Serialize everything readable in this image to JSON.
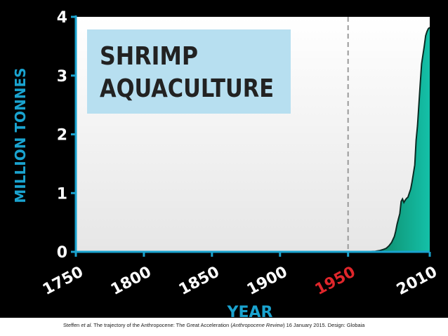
{
  "colors": {
    "accent": "#1aa3cf",
    "highlight": "#e0262b",
    "area_fill": "#12b8a3",
    "title_box": "#b7dff0",
    "background": "#000000",
    "plot_background": "#ececec",
    "caption_band": "#ffffff"
  },
  "caption": {
    "author": "Steffen",
    "author_suffix": "et al.",
    "text_1": " The trajectory of the Anthropocene: The Great Acceleration (",
    "journal": "Anthropocene Review",
    "text_2": ") 16 January 2015. Design: Globaia"
  },
  "chart_data": {
    "type": "area",
    "title_line1": "SHRIMP",
    "title_line2": "AQUACULTURE",
    "xlabel": "YEAR",
    "ylabel": "MILLION TONNES",
    "xlim": [
      1750,
      2010
    ],
    "ylim": [
      0,
      4
    ],
    "x_ticks": [
      "1750",
      "1800",
      "1850",
      "1900",
      "1950",
      "2010"
    ],
    "x_tick_values": [
      1750,
      1800,
      1850,
      1900,
      1950,
      2010
    ],
    "highlight_tick": "1950",
    "y_ticks": [
      "0",
      "1",
      "2",
      "3",
      "4"
    ],
    "y_tick_values": [
      0,
      1,
      2,
      3,
      4
    ],
    "reference_line": {
      "x": 1950,
      "style": "dashed"
    },
    "grid": false,
    "series": [
      {
        "x": [
          1950,
          1960,
          1970,
          1973,
          1976,
          1978,
          1980,
          1982,
          1984,
          1985,
          1986,
          1987,
          1988,
          1989,
          1990,
          1991,
          1992,
          1993,
          1994,
          1995,
          1996,
          1997,
          1998,
          1999,
          2000,
          2001,
          2002,
          2003,
          2004,
          2005,
          2006,
          2007,
          2008,
          2009,
          2010
        ],
        "y": [
          0,
          0,
          0.01,
          0.02,
          0.04,
          0.06,
          0.1,
          0.16,
          0.26,
          0.35,
          0.47,
          0.56,
          0.65,
          0.86,
          0.9,
          0.84,
          0.88,
          0.91,
          0.93,
          1.0,
          1.07,
          1.19,
          1.33,
          1.48,
          1.9,
          2.15,
          2.5,
          2.85,
          3.2,
          3.35,
          3.5,
          3.68,
          3.75,
          3.8,
          3.82
        ]
      }
    ]
  }
}
